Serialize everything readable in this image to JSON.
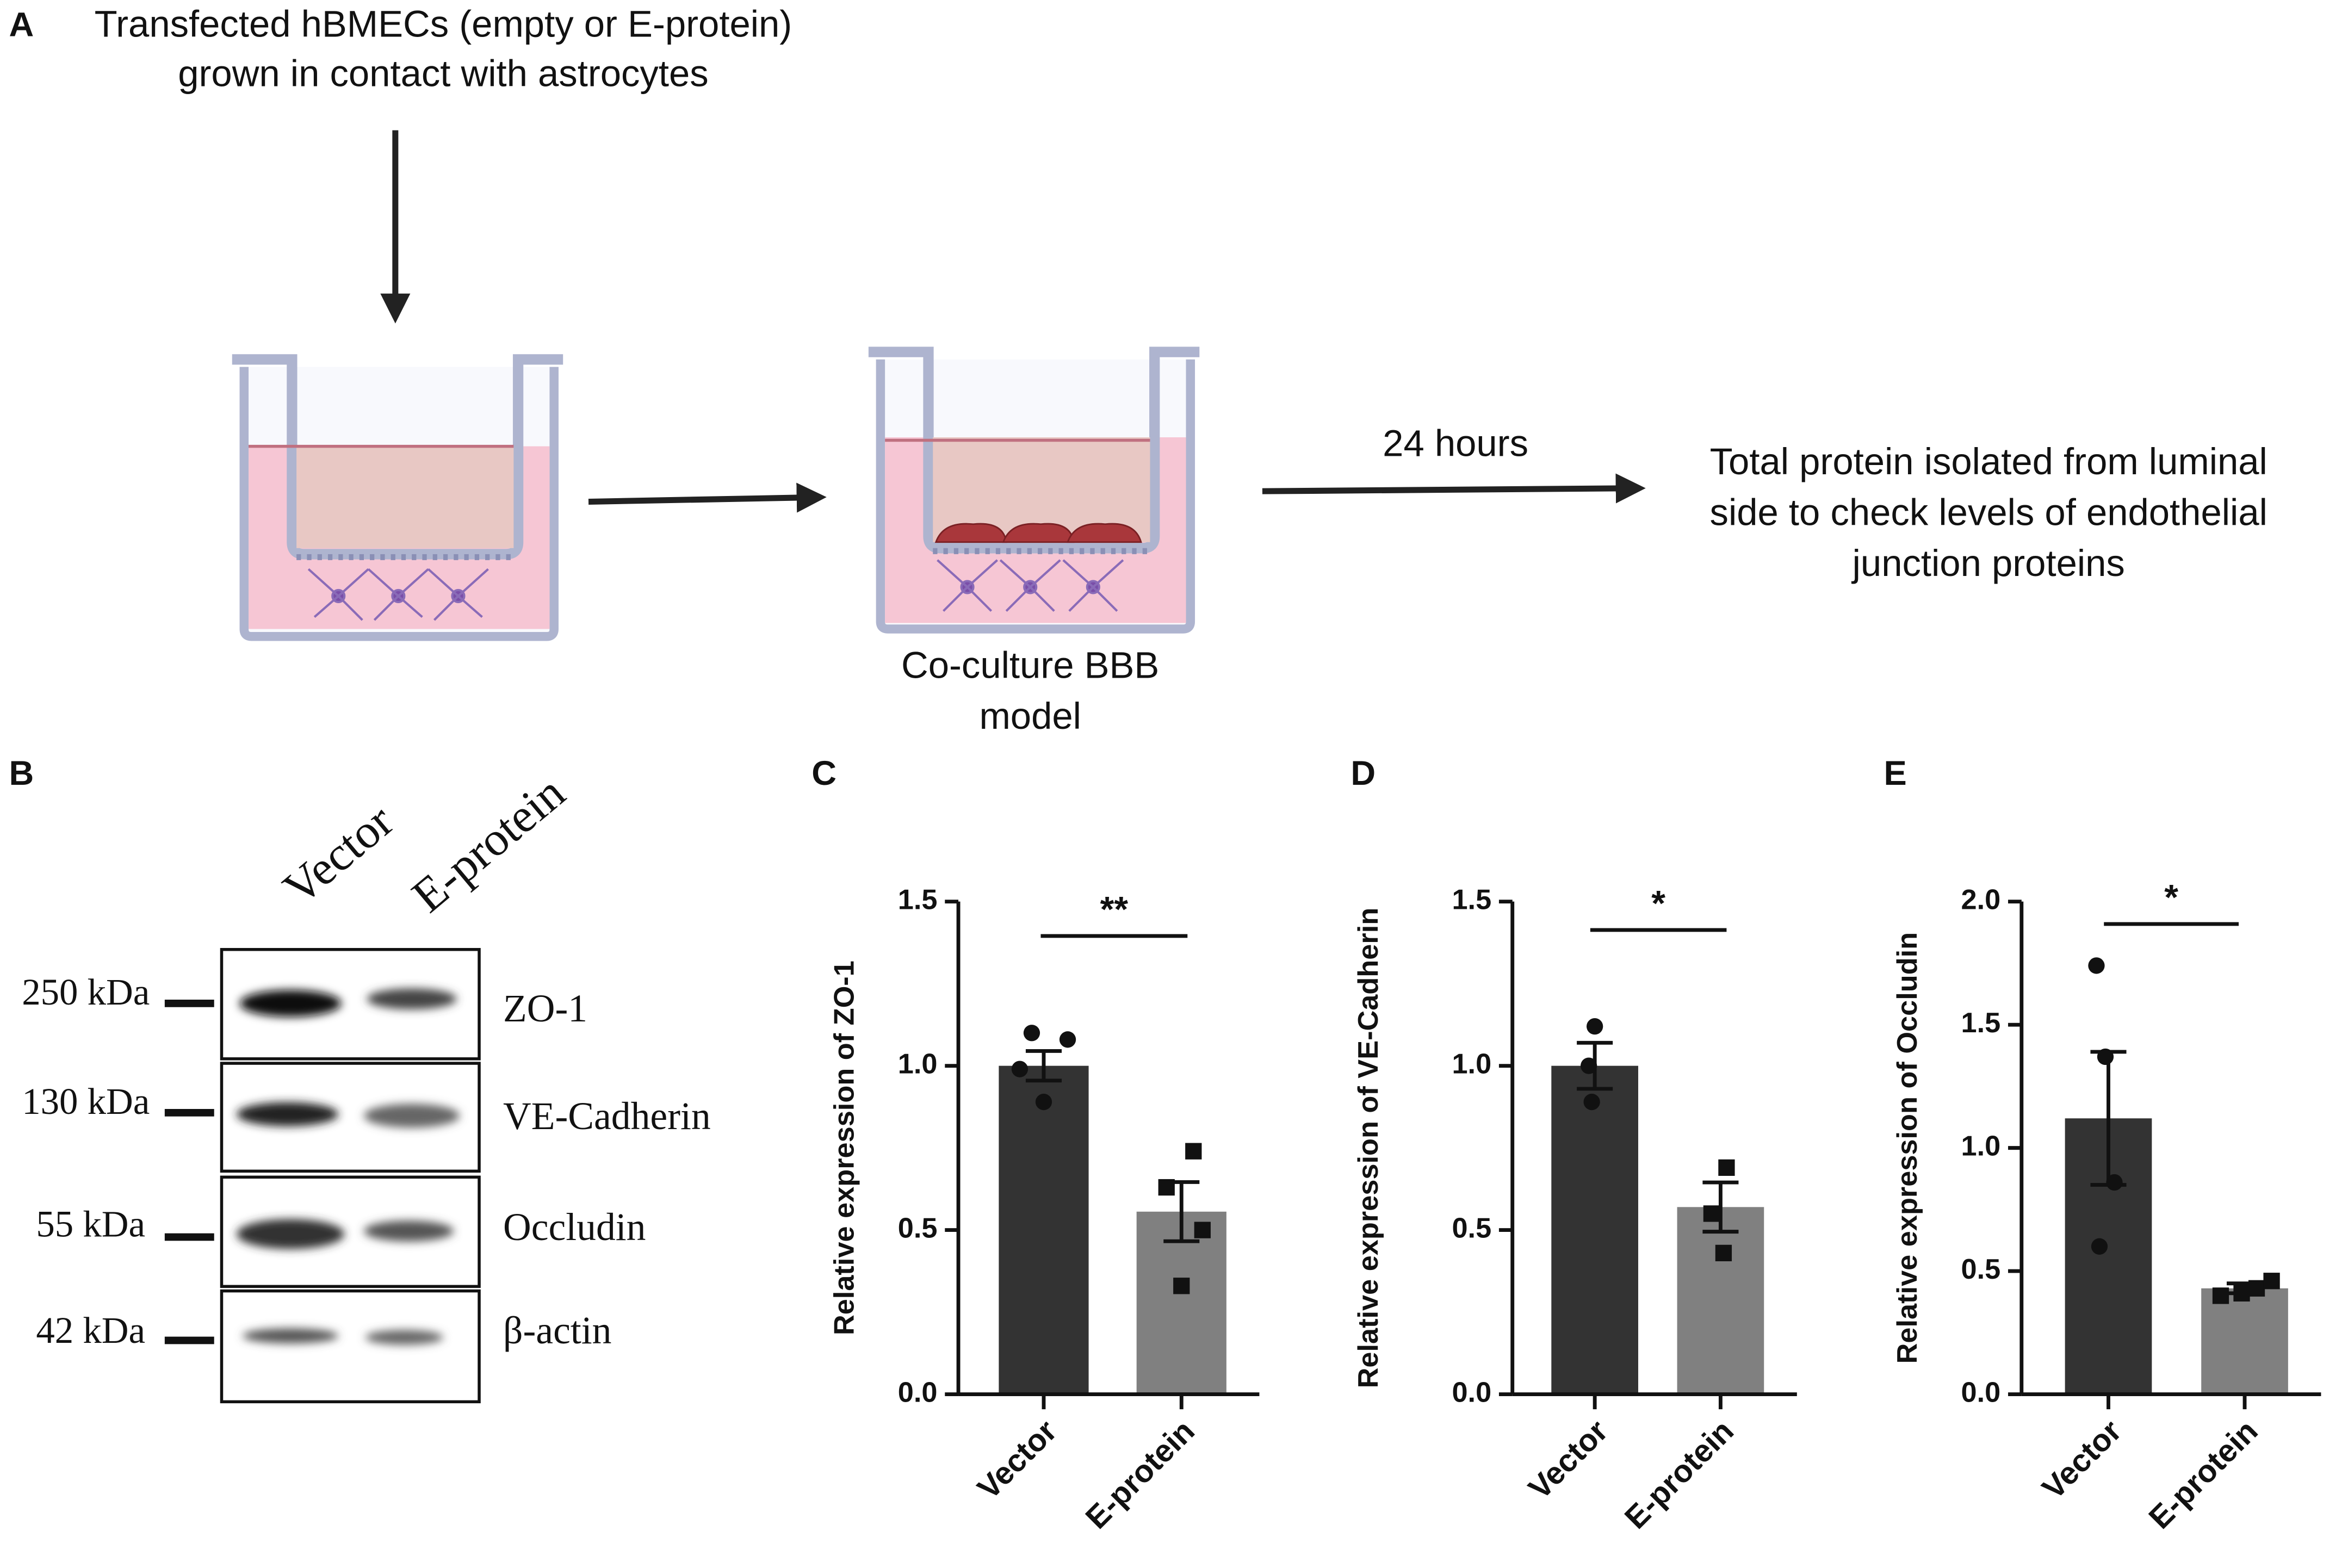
{
  "panel_a": {
    "label": "A",
    "intro": [
      "Transfected hBMECs (empty or E-protein)",
      "grown in contact with astrocytes"
    ],
    "model": [
      "Co-culture BBB",
      "model"
    ],
    "time": "24 hours",
    "result": [
      "Total protein isolated from luminal",
      "side to check levels of endothelial",
      "junction proteins"
    ]
  },
  "panel_b": {
    "label": "B",
    "lanes": [
      "Vector",
      "E-protein"
    ],
    "markers": [
      "250 kDa",
      "130 kDa",
      "55 kDa",
      "42 kDa"
    ],
    "proteins": [
      "ZO-1",
      "VE-Cadherin",
      "Occludin",
      "β-actin"
    ]
  },
  "chart_data": [
    {
      "type": "bar",
      "label": "C",
      "ylabel": "Relative expression of ZO-1",
      "categories": [
        "Vector",
        "E-protein"
      ],
      "values": [
        1.0,
        0.556
      ],
      "errors": [
        0.045,
        0.09
      ],
      "points": [
        [
          1.1,
          1.08,
          0.99,
          0.89
        ],
        [
          0.74,
          0.63,
          0.5,
          0.33
        ]
      ],
      "significance": "**",
      "colors": [
        "#333333",
        "#808080"
      ],
      "markers": [
        "circle",
        "square"
      ],
      "ylim": [
        0,
        1.5
      ],
      "yticks": [
        {
          "value": 0,
          "label": "0.0"
        },
        0.5,
        {
          "value": 1,
          "label": "1.0"
        },
        1.5
      ]
    },
    {
      "type": "bar",
      "label": "D",
      "ylabel": "Relative expression of VE-Cadherin",
      "categories": [
        "Vector",
        "E-protein"
      ],
      "values": [
        1.0,
        0.57
      ],
      "errors": [
        0.07,
        0.075
      ],
      "points": [
        [
          1.12,
          1.0,
          0.89
        ],
        [
          0.69,
          0.55,
          0.43
        ]
      ],
      "significance": "*",
      "colors": [
        "#333333",
        "#808080"
      ],
      "markers": [
        "circle",
        "square"
      ],
      "ylim": [
        0,
        1.5
      ],
      "yticks": [
        {
          "value": 0,
          "label": "0.0"
        },
        0.5,
        {
          "value": 1,
          "label": "1.0"
        },
        1.5
      ]
    },
    {
      "type": "bar",
      "label": "E",
      "ylabel": "Relative expression of Occludin",
      "categories": [
        "Vector",
        "E-protein"
      ],
      "values": [
        1.12,
        0.43
      ],
      "errors": [
        0.27,
        0.02
      ],
      "points": [
        [
          1.74,
          1.37,
          0.86,
          0.6
        ],
        [
          0.4,
          0.41,
          0.43,
          0.46
        ]
      ],
      "significance": "*",
      "colors": [
        "#333333",
        "#808080"
      ],
      "markers": [
        "circle",
        "square"
      ],
      "ylim": [
        0,
        2
      ],
      "yticks": [
        {
          "value": 0,
          "label": "0.0"
        },
        0.5,
        {
          "value": 1,
          "label": "1.0"
        },
        1.5,
        {
          "value": 2,
          "label": "2.0"
        }
      ]
    }
  ]
}
